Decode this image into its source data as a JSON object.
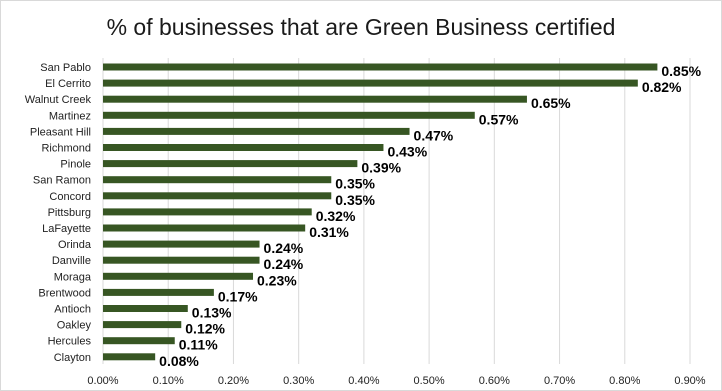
{
  "chart_data": {
    "type": "bar",
    "orientation": "horizontal",
    "title": "% of businesses that are Green Business certified",
    "xlabel": "",
    "ylabel": "",
    "categories": [
      "San Pablo",
      "El Cerrito",
      "Walnut Creek",
      "Martinez",
      "Pleasant Hill",
      "Richmond",
      "Pinole",
      "San Ramon",
      "Concord",
      "Pittsburg",
      "LaFayette",
      "Orinda",
      "Danville",
      "Moraga",
      "Brentwood",
      "Antioch",
      "Oakley",
      "Hercules",
      "Clayton"
    ],
    "values": [
      0.85,
      0.82,
      0.65,
      0.57,
      0.47,
      0.43,
      0.39,
      0.35,
      0.35,
      0.32,
      0.31,
      0.24,
      0.24,
      0.23,
      0.17,
      0.13,
      0.12,
      0.11,
      0.08
    ],
    "data_labels": [
      "0.85%",
      "0.82%",
      "0.65%",
      "0.57%",
      "0.47%",
      "0.43%",
      "0.39%",
      "0.35%",
      "0.35%",
      "0.32%",
      "0.31%",
      "0.24%",
      "0.24%",
      "0.23%",
      "0.17%",
      "0.13%",
      "0.12%",
      "0.11%",
      "0.08%"
    ],
    "x_ticks": [
      "0.00%",
      "0.10%",
      "0.20%",
      "0.30%",
      "0.40%",
      "0.50%",
      "0.60%",
      "0.70%",
      "0.80%",
      "0.90%"
    ],
    "xlim": [
      0,
      0.9
    ],
    "grid": true,
    "legend": "none",
    "colors": {
      "bar": "#375623",
      "grid": "#d9d9d9"
    }
  }
}
